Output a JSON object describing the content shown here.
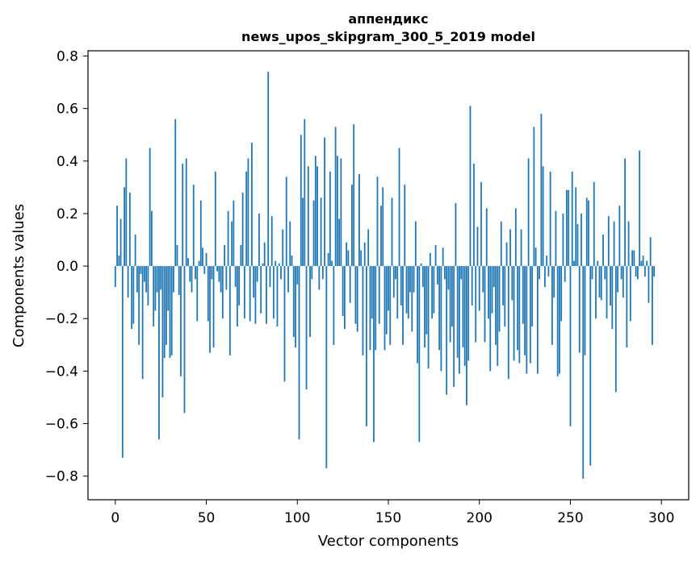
{
  "chart_data": {
    "type": "bar",
    "title_line1": "аппендикс",
    "title_line2": "news_upos_skipgram_300_5_2019 model",
    "xlabel": "Vector components",
    "ylabel": "Components values",
    "xlim": [
      -15,
      315
    ],
    "ylim": [
      -0.89,
      0.82
    ],
    "xticks": [
      0,
      50,
      100,
      150,
      200,
      250,
      300
    ],
    "xtick_labels": [
      "0",
      "50",
      "100",
      "150",
      "200",
      "250",
      "300"
    ],
    "yticks": [
      -0.8,
      -0.6,
      -0.4,
      -0.2,
      0.0,
      0.2,
      0.4,
      0.6,
      0.8
    ],
    "ytick_labels": [
      "−0.8",
      "−0.6",
      "−0.4",
      "−0.2",
      "0.0",
      "0.2",
      "0.4",
      "0.6",
      "0.8"
    ],
    "grid": false,
    "bar_color": "#1f77b4",
    "values": [
      -0.08,
      0.23,
      0.04,
      0.18,
      -0.73,
      0.3,
      0.41,
      -0.12,
      0.28,
      -0.24,
      -0.22,
      0.12,
      -0.1,
      -0.3,
      -0.03,
      -0.43,
      -0.06,
      -0.1,
      -0.15,
      0.45,
      0.21,
      -0.23,
      -0.17,
      -0.1,
      -0.66,
      -0.09,
      -0.5,
      -0.35,
      -0.3,
      -0.17,
      -0.35,
      -0.34,
      -0.1,
      0.56,
      0.08,
      -0.11,
      -0.42,
      0.39,
      -0.56,
      0.41,
      0.03,
      -0.06,
      -0.1,
      0.31,
      -0.05,
      -0.21,
      0.02,
      0.25,
      0.07,
      -0.03,
      0.05,
      -0.21,
      -0.33,
      -0.05,
      -0.31,
      0.36,
      -0.02,
      -0.06,
      -0.1,
      -0.2,
      0.08,
      -0.09,
      0.21,
      -0.34,
      0.17,
      0.25,
      -0.08,
      -0.23,
      -0.15,
      0.08,
      0.28,
      -0.2,
      0.36,
      0.41,
      -0.21,
      0.47,
      -0.12,
      -0.22,
      -0.06,
      0.2,
      -0.18,
      0.01,
      0.09,
      -0.22,
      0.74,
      -0.08,
      0.19,
      -0.2,
      0.02,
      -0.23,
      0.01,
      -0.05,
      0.14,
      -0.44,
      0.34,
      -0.1,
      0.17,
      0.04,
      -0.27,
      -0.31,
      -0.07,
      -0.66,
      0.5,
      0.26,
      0.56,
      -0.47,
      0.38,
      -0.27,
      -0.05,
      0.25,
      0.42,
      0.38,
      -0.09,
      0.26,
      -0.05,
      0.49,
      -0.77,
      0.05,
      0.36,
      0.02,
      -0.3,
      0.53,
      0.42,
      0.18,
      0.41,
      -0.19,
      -0.24,
      0.09,
      0.06,
      -0.14,
      0.31,
      0.54,
      -0.22,
      -0.25,
      0.35,
      0.06,
      -0.34,
      0.09,
      -0.61,
      0.14,
      -0.32,
      -0.2,
      -0.67,
      -0.32,
      0.34,
      -0.22,
      0.23,
      0.3,
      -0.32,
      -0.26,
      -0.17,
      -0.3,
      0.26,
      -0.12,
      -0.05,
      -0.2,
      0.45,
      -0.15,
      -0.3,
      0.31,
      -0.18,
      -0.2,
      -0.1,
      -0.25,
      -0.1,
      0.17,
      -0.37,
      -0.67,
      0.01,
      -0.08,
      -0.31,
      -0.26,
      -0.39,
      0.05,
      -0.2,
      -0.18,
      0.08,
      -0.07,
      -0.32,
      -0.4,
      0.07,
      -0.05,
      -0.49,
      -0.09,
      -0.29,
      -0.23,
      -0.46,
      0.24,
      -0.35,
      -0.41,
      -0.05,
      -0.31,
      -0.38,
      -0.53,
      -0.36,
      0.61,
      -0.15,
      0.39,
      -0.29,
      0.15,
      -0.17,
      0.32,
      -0.1,
      -0.29,
      0.22,
      -0.2,
      -0.4,
      -0.18,
      -0.08,
      -0.3,
      -0.38,
      -0.25,
      0.17,
      -0.15,
      -0.23,
      0.09,
      -0.43,
      0.14,
      -0.13,
      -0.36,
      0.22,
      -0.32,
      -0.37,
      0.14,
      -0.22,
      -0.34,
      -0.41,
      0.41,
      -0.37,
      -0.23,
      0.53,
      0.07,
      -0.41,
      -0.05,
      0.58,
      0.38,
      -0.08,
      0.04,
      -0.04,
      0.36,
      -0.3,
      -0.12,
      0.21,
      -0.42,
      -0.41,
      -0.21,
      0.2,
      -0.06,
      0.29,
      0.29,
      -0.61,
      0.36,
      0.02,
      0.3,
      0.16,
      -0.33,
      0.2,
      -0.81,
      -0.34,
      0.26,
      0.25,
      -0.76,
      -0.05,
      0.32,
      -0.2,
      0.02,
      -0.12,
      -0.13,
      0.12,
      -0.05,
      -0.2,
      0.19,
      -0.15,
      -0.24,
      0.17,
      -0.48,
      -0.1,
      0.23,
      -0.05,
      -0.12,
      0.41,
      -0.31,
      0.17,
      -0.21,
      0.06,
      0.06,
      -0.04,
      -0.05,
      0.44,
      0.02,
      0.04,
      -0.04,
      0.02,
      -0.14,
      0.11,
      -0.3,
      -0.04
    ]
  }
}
